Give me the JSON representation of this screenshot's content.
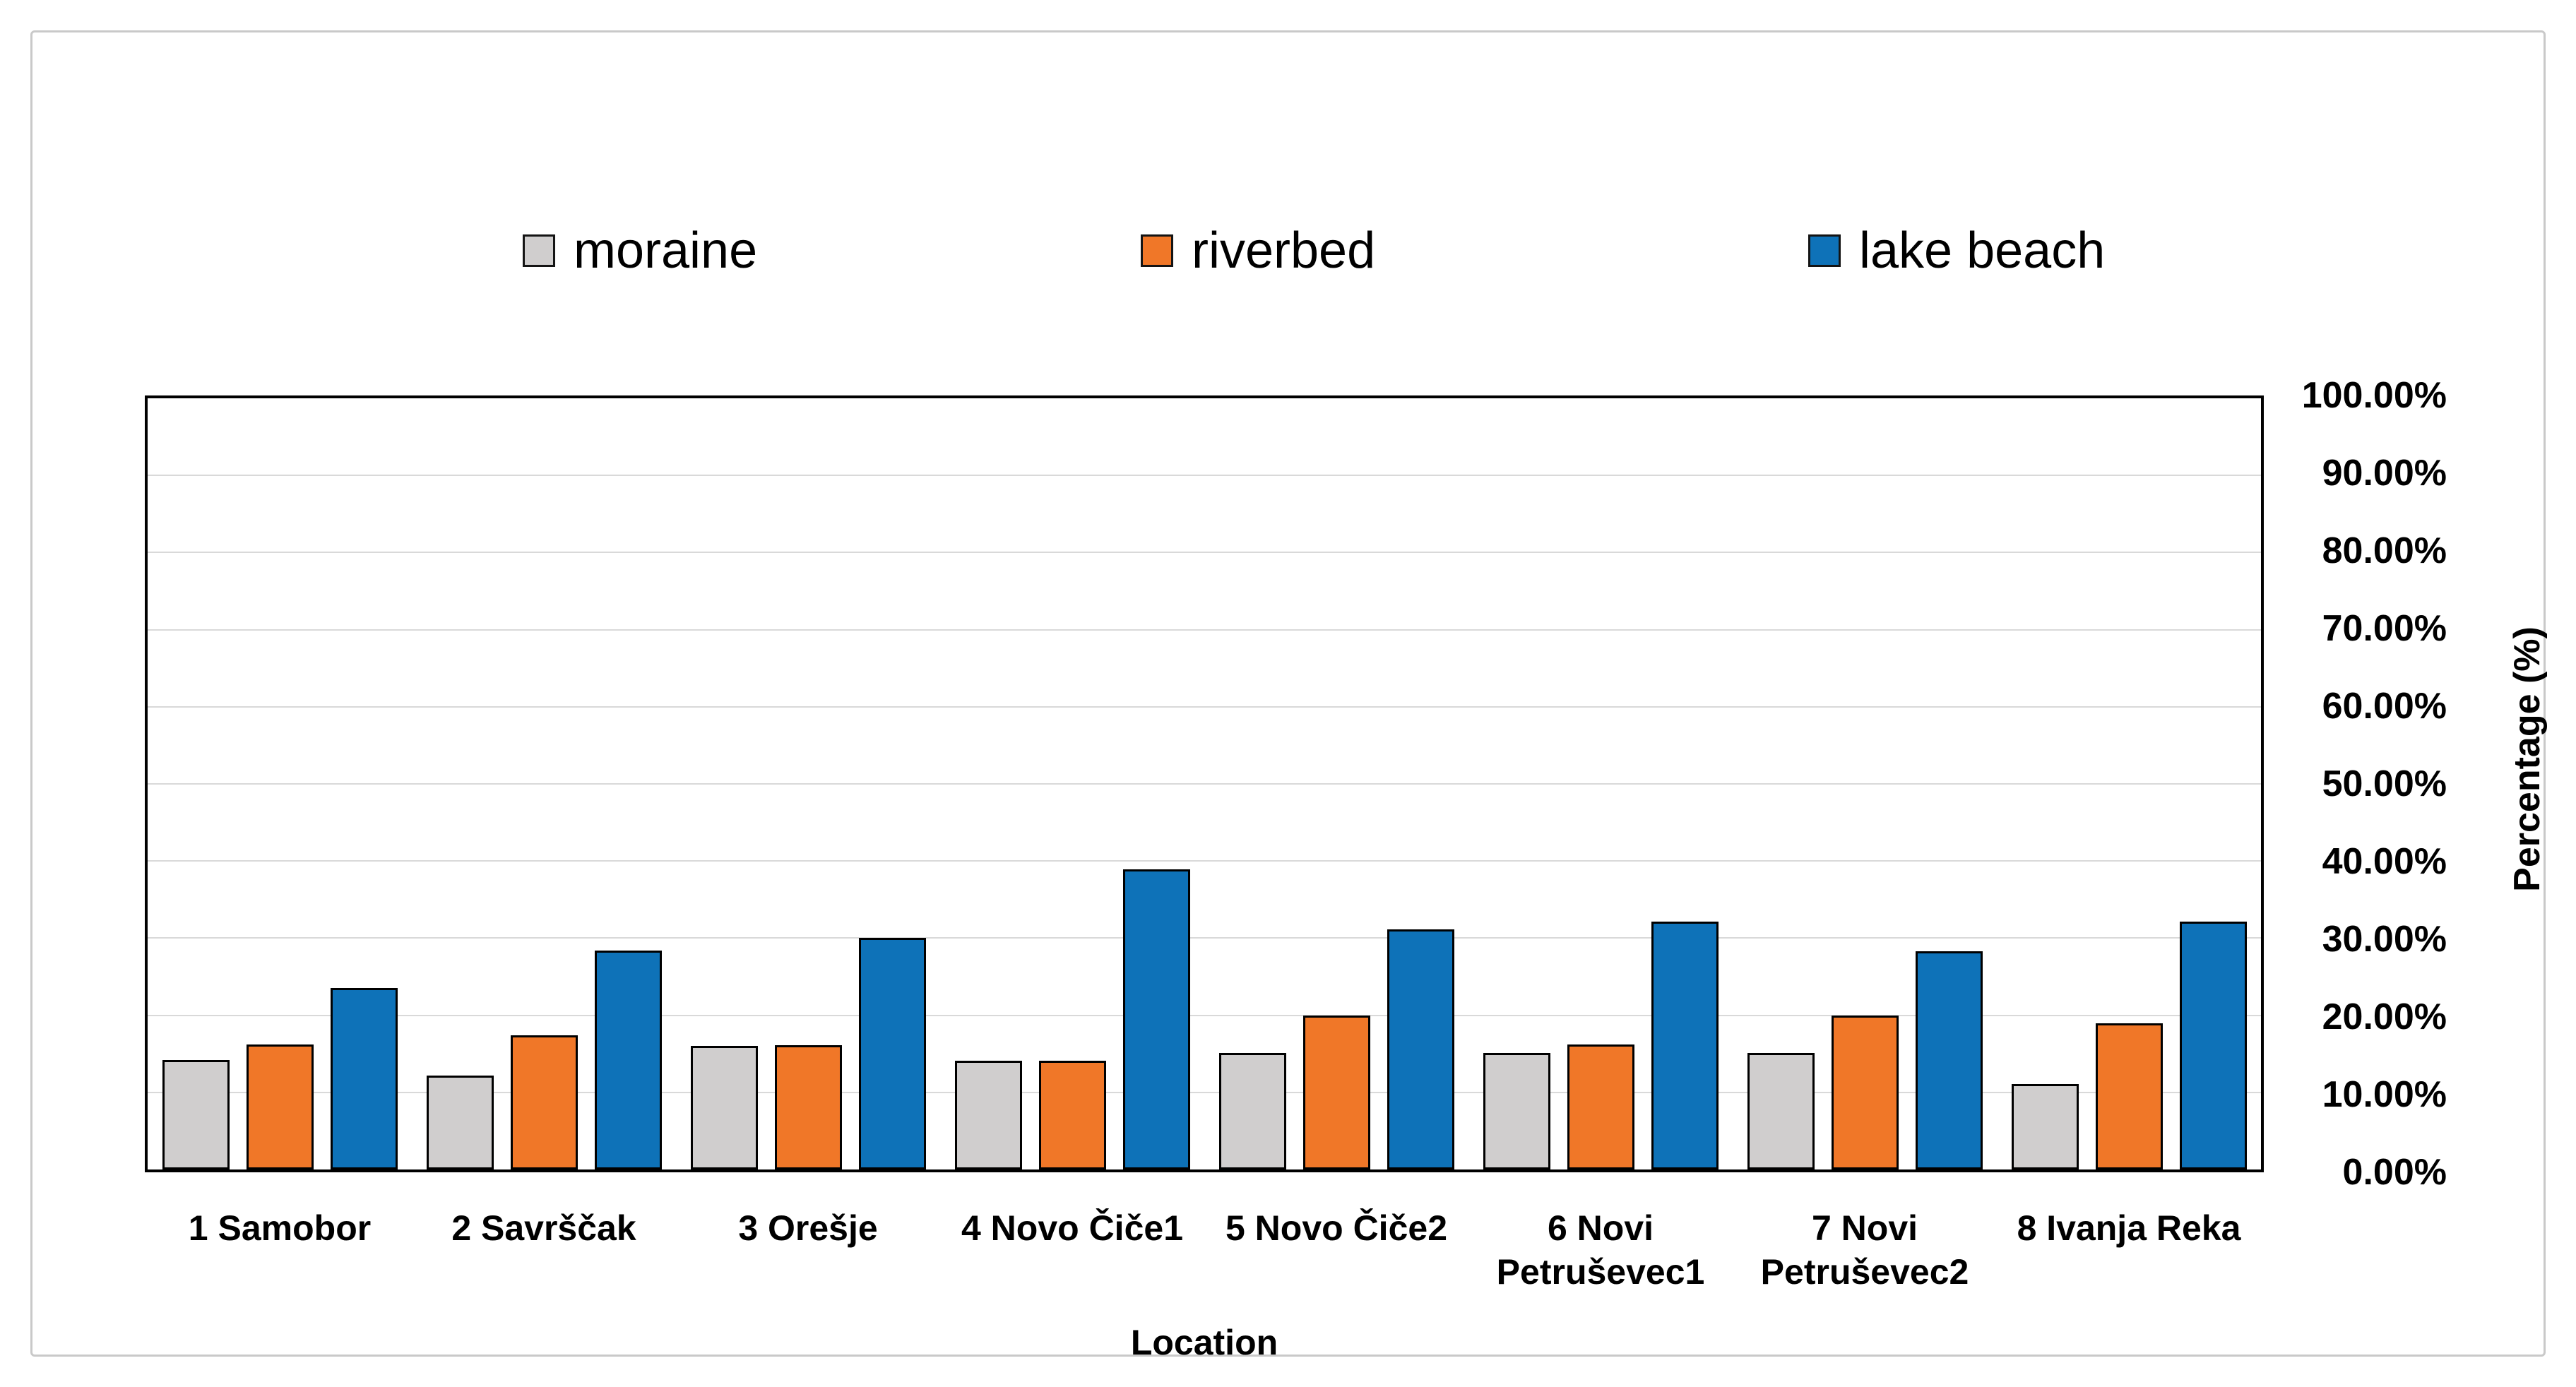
{
  "figure": {
    "background": "#ffffff",
    "frame_border_color": "#c9c9c9"
  },
  "legend": {
    "items": [
      {
        "label": "moraine",
        "color": "#D0CECE"
      },
      {
        "label": "riverbed",
        "color": "#F07728"
      },
      {
        "label": "lake beach",
        "color": "#0E72B8"
      }
    ]
  },
  "chart_data": {
    "type": "bar",
    "title": "",
    "xlabel": "Location",
    "ylabel": "Percentage (%)",
    "ylim": [
      0,
      100
    ],
    "grid": true,
    "legend_position": "top",
    "y_tick_values": [
      0,
      10,
      20,
      30,
      40,
      50,
      60,
      70,
      80,
      90,
      100
    ],
    "y_tick_labels": [
      "0.00%",
      "10.00%",
      "20.00%",
      "30.00%",
      "40.00%",
      "50.00%",
      "60.00%",
      "70.00%",
      "80.00%",
      "90.00%",
      "100.00%"
    ],
    "categories": [
      "1 Samobor",
      "2 Savrščak",
      "3 Orešje",
      "4 Novo Čiče1",
      "5 Novo Čiče2",
      "6 Novi Petruševec1",
      "7 Novi Petruševec2",
      "8 Ivanja Reka"
    ],
    "series": [
      {
        "name": "moraine",
        "color": "#D0CECE",
        "border": "#000000",
        "values": [
          14.2,
          12.2,
          16.0,
          14.1,
          15.1,
          15.1,
          15.1,
          11.1
        ]
      },
      {
        "name": "riverbed",
        "color": "#F07728",
        "border": "#000000",
        "values": [
          16.2,
          17.4,
          16.1,
          14.1,
          20.0,
          16.2,
          20.0,
          19.0
        ]
      },
      {
        "name": "lake beach",
        "color": "#0E72B8",
        "border": "#000000",
        "values": [
          23.5,
          28.4,
          30.0,
          38.9,
          31.1,
          32.1,
          28.3,
          32.1
        ]
      }
    ]
  }
}
